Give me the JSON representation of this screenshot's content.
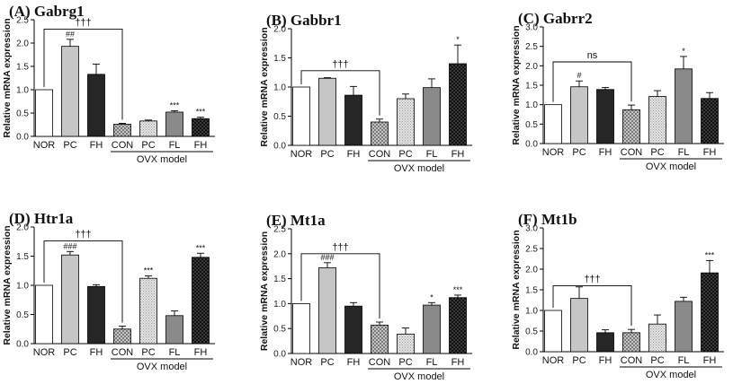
{
  "figure": {
    "group_caption": "OVX model",
    "ylabel": "Relative mRNA expression"
  },
  "chart_data": [
    {
      "type": "bar",
      "panel": "(A)",
      "title": "Gabrg1",
      "ylabel": "Relative mRNA expression",
      "ylim": [
        0,
        2.5
      ],
      "yticks": [
        "0.0",
        "0.5",
        "1.0",
        "1.5",
        "2.0",
        "2.5"
      ],
      "categories": [
        "NOR",
        "PC",
        "FH",
        "CON",
        "PC",
        "FL",
        "FH"
      ],
      "group_label": "OVX model",
      "values": [
        1.0,
        1.93,
        1.33,
        0.26,
        0.33,
        0.52,
        0.38
      ],
      "errors": [
        0,
        0.15,
        0.22,
        0.02,
        0.02,
        0.03,
        0.03
      ],
      "significance": [
        "",
        "##",
        "",
        "",
        "",
        "***",
        "***"
      ],
      "bracket": {
        "from": 0,
        "to": 3,
        "label": "†††",
        "y": 2.3
      }
    },
    {
      "type": "bar",
      "panel": "(B)",
      "title": "Gabbr1",
      "ylabel": "Relative mRNA expression",
      "ylim": [
        0,
        2.0
      ],
      "yticks": [
        "0.0",
        "0.5",
        "1.0",
        "1.5",
        "2.0"
      ],
      "categories": [
        "NOR",
        "PC",
        "FH",
        "CON",
        "PC",
        "FL",
        "FH"
      ],
      "group_label": "OVX model",
      "values": [
        1.0,
        1.15,
        0.86,
        0.4,
        0.8,
        0.99,
        1.4
      ],
      "errors": [
        0,
        0.01,
        0.15,
        0.05,
        0.08,
        0.15,
        0.32
      ],
      "significance": [
        "",
        "",
        "",
        "",
        "",
        "",
        "*"
      ],
      "bracket": {
        "from": 0,
        "to": 3,
        "label": "†††",
        "y": 1.28
      }
    },
    {
      "type": "bar",
      "panel": "(C)",
      "title": "Gabrr2",
      "ylabel": "Relative mRNA expression",
      "ylim": [
        0,
        3.0
      ],
      "yticks": [
        "0.0",
        "0.5",
        "1.0",
        "1.5",
        "2.0",
        "2.5",
        "3.0"
      ],
      "categories": [
        "NOR",
        "PC",
        "FH",
        "CON",
        "PC",
        "FL",
        "FH"
      ],
      "group_label": "OVX model",
      "values": [
        1.0,
        1.46,
        1.39,
        0.87,
        1.21,
        1.92,
        1.16
      ],
      "errors": [
        0,
        0.15,
        0.05,
        0.12,
        0.15,
        0.32,
        0.15
      ],
      "significance": [
        "",
        "#",
        "",
        "",
        "",
        "*",
        ""
      ],
      "bracket": {
        "from": 0,
        "to": 3,
        "label": "ns",
        "y": 2.1
      }
    },
    {
      "type": "bar",
      "panel": "(D)",
      "title": "Htr1a",
      "ylabel": "Relative mRNA expression",
      "ylim": [
        0,
        2.0
      ],
      "yticks": [
        "0.0",
        "0.5",
        "1.0",
        "1.5",
        "2.0"
      ],
      "categories": [
        "NOR",
        "PC",
        "FH",
        "CON",
        "PC",
        "FL",
        "FH"
      ],
      "group_label": "OVX model",
      "values": [
        1.0,
        1.52,
        0.98,
        0.25,
        1.12,
        0.48,
        1.48
      ],
      "errors": [
        0,
        0.06,
        0.03,
        0.05,
        0.04,
        0.08,
        0.07
      ],
      "significance": [
        "",
        "###",
        "",
        "",
        "***",
        "",
        "***"
      ],
      "bracket": {
        "from": 0,
        "to": 3,
        "label": "†††",
        "y": 1.76
      }
    },
    {
      "type": "bar",
      "panel": "(E)",
      "title": "Mt1a",
      "ylabel": "Relative mRNA expression",
      "ylim": [
        0,
        2.5
      ],
      "yticks": [
        "0.0",
        "0.5",
        "1.0",
        "1.5",
        "2.0",
        "2.5"
      ],
      "categories": [
        "NOR",
        "PC",
        "FH",
        "CON",
        "PC",
        "FL",
        "FH"
      ],
      "group_label": "OVX model",
      "values": [
        1.0,
        1.72,
        0.95,
        0.57,
        0.39,
        0.97,
        1.12
      ],
      "errors": [
        0,
        0.1,
        0.07,
        0.06,
        0.12,
        0.05,
        0.05
      ],
      "significance": [
        "",
        "###",
        "",
        "",
        "",
        "*",
        "***"
      ],
      "bracket": {
        "from": 0,
        "to": 3,
        "label": "†††",
        "y": 2.0
      }
    },
    {
      "type": "bar",
      "panel": "(F)",
      "title": "Mt1b",
      "ylabel": "Relative mRNA expression",
      "ylim": [
        0,
        3.0
      ],
      "yticks": [
        "0.0",
        "0.5",
        "1.0",
        "1.5",
        "2.0",
        "2.5",
        "3.0"
      ],
      "categories": [
        "NOR",
        "PC",
        "FH",
        "CON",
        "PC",
        "FL",
        "FH"
      ],
      "group_label": "OVX model",
      "values": [
        1.0,
        1.29,
        0.46,
        0.46,
        0.67,
        1.22,
        1.91
      ],
      "errors": [
        0,
        0.28,
        0.07,
        0.08,
        0.22,
        0.1,
        0.3
      ],
      "significance": [
        "",
        "",
        "",
        "",
        "",
        "",
        "***"
      ],
      "bracket": {
        "from": 0,
        "to": 3,
        "label": "†††",
        "y": 1.6
      }
    }
  ]
}
